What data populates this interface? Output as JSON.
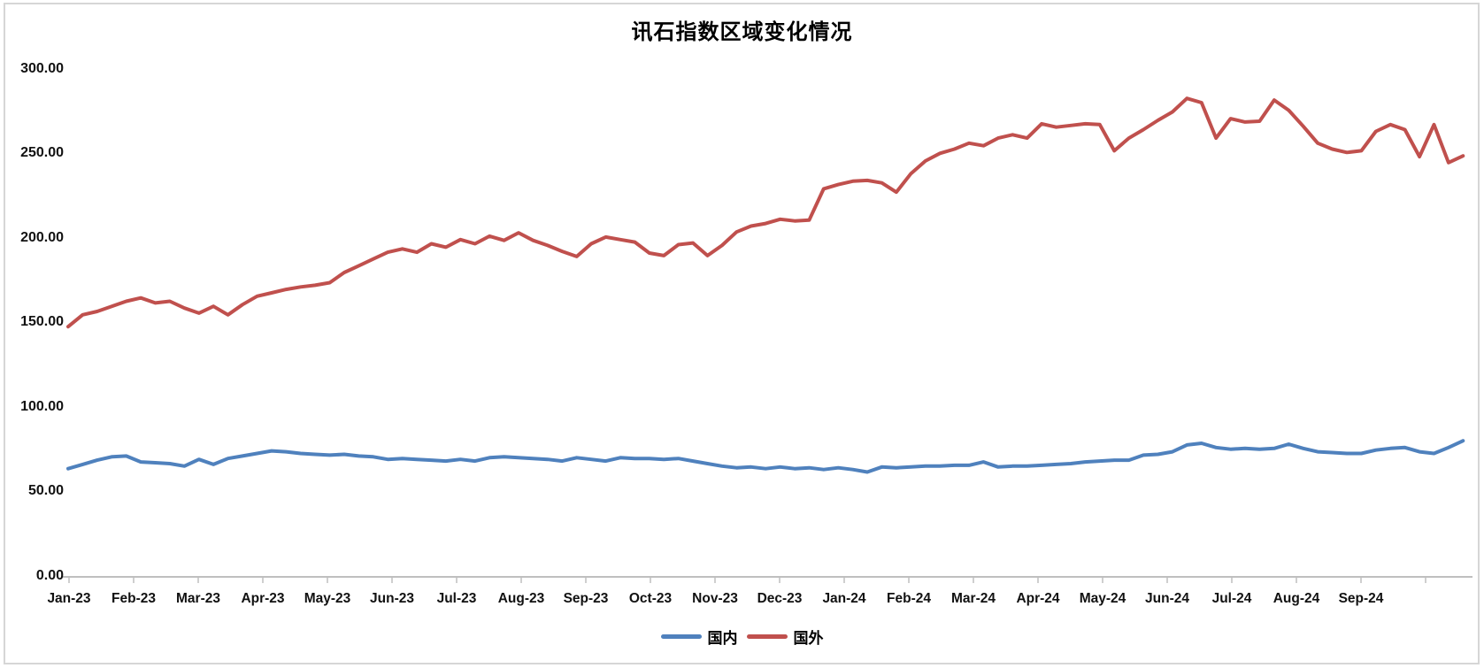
{
  "chart_data": {
    "type": "line",
    "title": "讯石指数区域变化情况",
    "x_labels": [
      "Jan-23",
      "Feb-23",
      "Mar-23",
      "Apr-23",
      "May-23",
      "Jun-23",
      "Jul-23",
      "Aug-23",
      "Sep-23",
      "Oct-23",
      "Nov-23",
      "Dec-23",
      "Jan-24",
      "Feb-24",
      "Mar-24",
      "Apr-24",
      "May-24",
      "Jun-24",
      "Jul-24",
      "Aug-24",
      "Sep-24"
    ],
    "x_unit": "weekly points",
    "y_axis": {
      "min": 0,
      "max": 300,
      "step": 50,
      "tick_labels": [
        "300.00",
        "250.00",
        "200.00",
        "150.00",
        "100.00",
        "50.00",
        "0.00"
      ]
    },
    "grid": "off",
    "legend_position": "bottom",
    "axis_color": "#BFBFBF",
    "series": [
      {
        "name": "国内",
        "color": "#4F81BD",
        "values": [
          64,
          66.5,
          69,
          71,
          71.5,
          68,
          67.5,
          67,
          65.5,
          69.5,
          66.5,
          70,
          71.5,
          73,
          74.5,
          74,
          73,
          72.5,
          72,
          72.5,
          71.5,
          71,
          69.5,
          70,
          69.5,
          69,
          68.5,
          69.5,
          68.5,
          70.5,
          71,
          70.5,
          70,
          69.5,
          68.5,
          70.5,
          69.5,
          68.5,
          70.5,
          70,
          70,
          69.5,
          70,
          68.5,
          67,
          65.5,
          64.5,
          65,
          64,
          65,
          64,
          64.5,
          63.5,
          64.5,
          63.5,
          62,
          65,
          64.5,
          65,
          65.5,
          65.5,
          66,
          66,
          68,
          65,
          65.5,
          65.5,
          66,
          66.5,
          67,
          68,
          68.5,
          69,
          69,
          72,
          72.5,
          74,
          78,
          79,
          76.5,
          75.5,
          76,
          75.5,
          76,
          78.5,
          76,
          74,
          73.5,
          73,
          73,
          75,
          76,
          76.5,
          74,
          73,
          76.5,
          80.5
        ]
      },
      {
        "name": "国外",
        "color": "#C0504D",
        "values": [
          148,
          155,
          157,
          160,
          163,
          165,
          162,
          163,
          159,
          156,
          160,
          155,
          161,
          166,
          168,
          170,
          171.5,
          172.5,
          174,
          180,
          184,
          188,
          192,
          194,
          192,
          197,
          195,
          199.5,
          197,
          201.5,
          199,
          203.5,
          199,
          196,
          192.5,
          189.5,
          197,
          201,
          199.5,
          198,
          191.5,
          190,
          196.5,
          197.5,
          190,
          196,
          204,
          207.5,
          209,
          211.5,
          210.5,
          211,
          229.5,
          232,
          234,
          234.5,
          233,
          227.5,
          238.5,
          246,
          250.5,
          253,
          256.5,
          255,
          259.5,
          261.5,
          259.5,
          268,
          266,
          267,
          268,
          267.5,
          252,
          259.5,
          264.5,
          270,
          275,
          283,
          280.5,
          259.5,
          271,
          269,
          269.5,
          282,
          276,
          266.5,
          256.5,
          253,
          251,
          252,
          263.5,
          267.5,
          264.5,
          248.5,
          267.5,
          245,
          249
        ]
      }
    ]
  }
}
